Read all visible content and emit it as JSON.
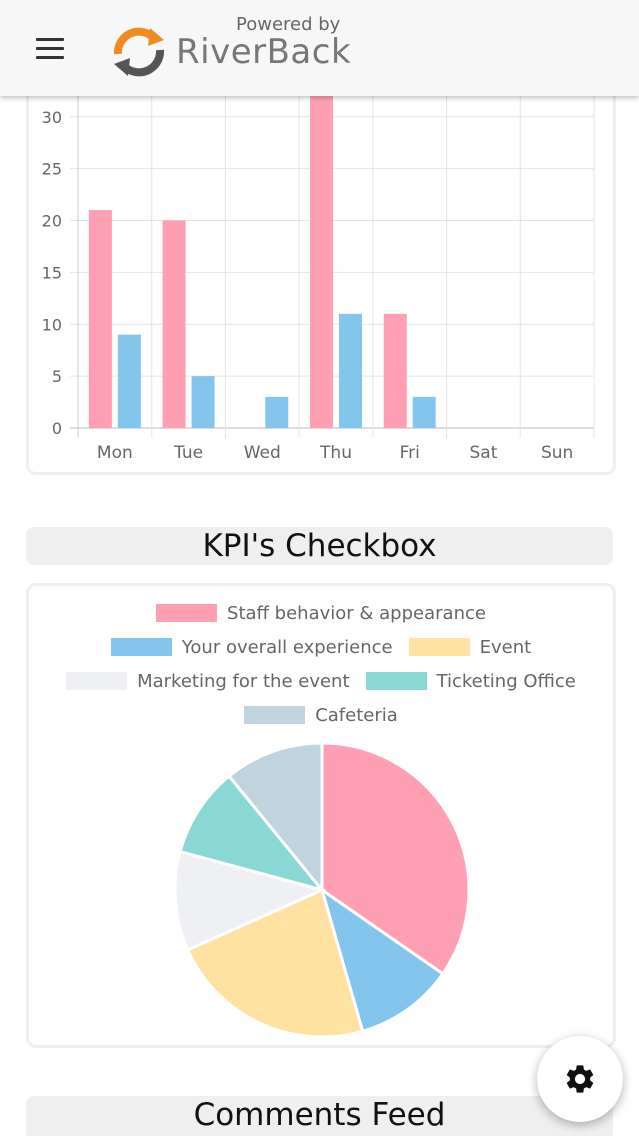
{
  "header": {
    "powered_by": "Powered by",
    "brand": "RiverBack"
  },
  "sections": {
    "kpi_title": "KPI's Checkbox",
    "comments_title": "Comments Feed"
  },
  "colors": {
    "pink": "#ff9fb3",
    "blue": "#84c5ee",
    "yellow": "#ffe1a1",
    "light_gray": "#eff0f3",
    "teal": "#8ad8d6",
    "gray_blue": "#c0d4df"
  },
  "chart_data": [
    {
      "type": "bar",
      "categories": [
        "Mon",
        "Tue",
        "Wed",
        "Thu",
        "Fri",
        "Sat",
        "Sun"
      ],
      "series": [
        {
          "values": [
            21,
            20,
            0,
            32,
            11,
            0,
            0
          ],
          "color": "#ff9fb3"
        },
        {
          "values": [
            9,
            5,
            3,
            11,
            3,
            0,
            0
          ],
          "color": "#84c5ee"
        }
      ],
      "yticks": [
        0,
        5,
        10,
        15,
        20,
        25,
        30
      ],
      "ylim": [
        0,
        32
      ],
      "grid": true
    },
    {
      "type": "pie",
      "legend": [
        {
          "label": "Staff behavior & appearance",
          "color": "#ff9fb3"
        },
        {
          "label": "Your overall experience",
          "color": "#84c5ee"
        },
        {
          "label": "Event",
          "color": "#ffe1a1"
        },
        {
          "label": "Marketing for the event",
          "color": "#eff0f3"
        },
        {
          "label": "Ticketing Office",
          "color": "#8ad8d6"
        },
        {
          "label": "Cafeteria",
          "color": "#c0d4df"
        }
      ],
      "values": [
        35,
        11,
        23,
        11,
        10,
        11
      ],
      "legend_placement": "top"
    }
  ],
  "fab": {
    "icon": "gear-icon"
  }
}
